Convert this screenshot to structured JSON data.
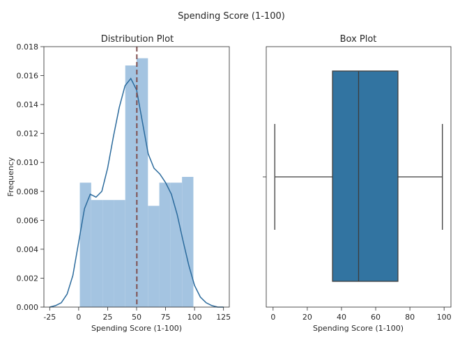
{
  "figure": {
    "suptitle": "Spending Score (1-100)",
    "colors": {
      "hist_fill": "#a4c4e1",
      "kde_line": "#2a6a9c",
      "mean_line": "#7f4f4f",
      "box_fill": "#3274a1",
      "box_edge": "#3c3c3c"
    }
  },
  "chart_data": [
    {
      "type": "histogram",
      "title": "Distribution Plot",
      "xlabel": "Spending Score (1-100)",
      "ylabel": "Frequency",
      "xlim": [
        -30,
        130
      ],
      "ylim": [
        0,
        0.018
      ],
      "xticks": [
        -25,
        0,
        25,
        50,
        75,
        100,
        125
      ],
      "yticks": [
        0.0,
        0.002,
        0.004,
        0.006,
        0.008,
        0.01,
        0.012,
        0.014,
        0.016,
        0.018
      ],
      "ytick_labels": [
        "0.000",
        "0.002",
        "0.004",
        "0.006",
        "0.008",
        "0.010",
        "0.012",
        "0.014",
        "0.016",
        "0.018"
      ],
      "bins": [
        {
          "x0": 1,
          "x1": 10.8,
          "density": 0.0086
        },
        {
          "x0": 10.8,
          "x1": 20.6,
          "density": 0.0074
        },
        {
          "x0": 20.6,
          "x1": 30.4,
          "density": 0.0074
        },
        {
          "x0": 30.4,
          "x1": 40.2,
          "density": 0.0074
        },
        {
          "x0": 40.2,
          "x1": 50.0,
          "density": 0.0167
        },
        {
          "x0": 50.0,
          "x1": 59.8,
          "density": 0.0172
        },
        {
          "x0": 59.8,
          "x1": 69.6,
          "density": 0.007
        },
        {
          "x0": 69.6,
          "x1": 79.4,
          "density": 0.0086
        },
        {
          "x0": 79.4,
          "x1": 89.2,
          "density": 0.0086
        },
        {
          "x0": 89.2,
          "x1": 99.0,
          "density": 0.009
        }
      ],
      "kde": {
        "x": [
          -25,
          -20,
          -15,
          -10,
          -5,
          0,
          5,
          10,
          15,
          20,
          25,
          30,
          35,
          40,
          45,
          50,
          55,
          60,
          65,
          70,
          75,
          80,
          85,
          90,
          95,
          100,
          105,
          110,
          115,
          120,
          125
        ],
        "y": [
          0.0,
          0.0001,
          0.0003,
          0.0009,
          0.0022,
          0.0045,
          0.0068,
          0.0078,
          0.0076,
          0.008,
          0.0096,
          0.0118,
          0.0138,
          0.0153,
          0.0158,
          0.015,
          0.0128,
          0.0106,
          0.0096,
          0.0092,
          0.0086,
          0.0078,
          0.0064,
          0.0046,
          0.0029,
          0.0015,
          0.0007,
          0.0003,
          0.0001,
          0.0,
          0.0
        ]
      },
      "mean_line_x": 50.2
    },
    {
      "type": "box",
      "title": "Box Plot",
      "xlabel": "Spending Score (1-100)",
      "xlim": [
        -4,
        104
      ],
      "xticks": [
        0,
        20,
        40,
        60,
        80,
        100
      ],
      "min": 1,
      "q1": 34.75,
      "median": 50,
      "q3": 73,
      "max": 99
    }
  ]
}
